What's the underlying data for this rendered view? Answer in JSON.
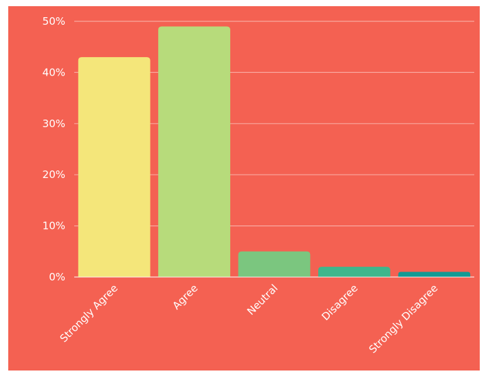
{
  "chart_data": {
    "type": "bar",
    "title": "",
    "xlabel": "",
    "ylabel": "",
    "categories": [
      "Strongly Agree",
      "Agree",
      "Neutral",
      "Disagree",
      "Strongly Disagree"
    ],
    "values": [
      43,
      49,
      5,
      2,
      1
    ],
    "value_format": "percent",
    "ylim": [
      0,
      50
    ],
    "yticks": [
      0,
      10,
      20,
      30,
      40,
      50
    ],
    "ytick_labels": [
      "0%",
      "10%",
      "20%",
      "30%",
      "40%",
      "50%"
    ],
    "grid": true,
    "legend": "none",
    "background_color": "#f46152",
    "bar_colors": [
      "#f4e67a",
      "#b7db7b",
      "#7bc67f",
      "#3eb68c",
      "#119a94"
    ]
  }
}
